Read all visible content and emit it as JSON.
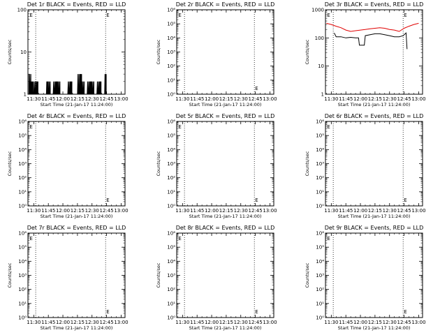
{
  "figure": {
    "background": "#ffffff",
    "foreground": "#000000",
    "lld_color": "#e00000"
  },
  "chart_data": [
    {
      "panel": "det-1",
      "type": "line",
      "title": "Det 1r BLACK = Events, RED = LLD",
      "xlabel": "Start Time (21-Jan-17 11:24:00)",
      "ylabel": "Counts/sec",
      "x_tick_labels": [
        "11:30",
        "11:45",
        "12:00",
        "12:15",
        "12:30",
        "12:45",
        "13:00"
      ],
      "xlim": [
        "11:24",
        "13:04"
      ],
      "y_scale": "log",
      "ylim": [
        1,
        100
      ],
      "y_tick_labels": [
        "1",
        "10",
        "100"
      ],
      "vlines_dotted": [
        "11:32",
        "12:44"
      ],
      "markers": [
        "E",
        "E"
      ],
      "marker_times": [
        "11:25",
        "12:44"
      ],
      "series": [
        {
          "color": "#000000",
          "style": "noisy",
          "x": [
            "11:25",
            "11:28",
            "11:30",
            "11:33",
            "11:35",
            "11:38",
            "11:40",
            "11:43",
            "11:45",
            "11:48",
            "11:50",
            "11:53",
            "11:55",
            "11:58",
            "12:00",
            "12:03",
            "12:05",
            "12:08",
            "12:10",
            "12:13",
            "12:15",
            "12:18",
            "12:20",
            "12:23",
            "12:25",
            "12:28",
            "12:30",
            "12:33",
            "12:35",
            "12:38",
            "12:40",
            "12:43",
            "12:45"
          ],
          "y": [
            3,
            2,
            1,
            2,
            1,
            1,
            1,
            1,
            2,
            1,
            1,
            2,
            2,
            1,
            1,
            1,
            1,
            2,
            1,
            1,
            1,
            3,
            2,
            1,
            1,
            2,
            2,
            1,
            1,
            2,
            1,
            1,
            3
          ]
        }
      ]
    },
    {
      "panel": "det-2",
      "type": "line",
      "title": "Det 2r BLACK = Events, RED = LLD",
      "xlabel": "Start Time (21-Jan-17 11:24:00)",
      "ylabel": "Counts/sec",
      "x_tick_labels": [
        "11:30",
        "11:45",
        "12:00",
        "12:15",
        "12:30",
        "12:45",
        "13:00"
      ],
      "xlim": [
        "11:24",
        "13:04"
      ],
      "y_scale": "log",
      "ylim": [
        1,
        1000000
      ],
      "y_tick_labels": [
        "10⁰",
        "10¹",
        "10²",
        "10³",
        "10⁴",
        "10⁵",
        "10⁶"
      ],
      "vlines_dotted": [
        "11:32",
        "12:44"
      ],
      "markers": [
        "E",
        "E"
      ],
      "marker_times": [
        "11:25",
        "12:44"
      ],
      "series": []
    },
    {
      "panel": "det-3",
      "type": "line",
      "title": "Det 3r BLACK = Events, RED = LLD",
      "xlabel": "Start Time (21-Jan-17 11:24:00)",
      "ylabel": "Counts/sec",
      "x_tick_labels": [
        "11:30",
        "11:45",
        "12:00",
        "12:15",
        "12:30",
        "12:45",
        "13:00"
      ],
      "xlim": [
        "11:24",
        "13:04"
      ],
      "y_scale": "log",
      "ylim": [
        1,
        1000
      ],
      "y_tick_labels": [
        "1",
        "10",
        "100",
        "1000"
      ],
      "vlines_dotted": [
        "11:32",
        "12:44"
      ],
      "markers": [
        "E",
        "E"
      ],
      "marker_times": [
        "11:25",
        "12:44"
      ],
      "series": [
        {
          "color": "#e00000",
          "style": "line",
          "x": [
            "11:25",
            "11:30",
            "11:35",
            "11:40",
            "11:45",
            "11:50",
            "11:55",
            "12:00",
            "12:05",
            "12:10",
            "12:15",
            "12:20",
            "12:25",
            "12:30",
            "12:35",
            "12:40",
            "12:45",
            "12:50",
            "12:55",
            "13:00"
          ],
          "y": [
            330,
            300,
            260,
            230,
            190,
            170,
            180,
            190,
            200,
            210,
            220,
            230,
            220,
            200,
            190,
            170,
            220,
            260,
            300,
            330
          ]
        },
        {
          "color": "#000000",
          "style": "line",
          "x": [
            "11:33",
            "11:35",
            "11:40",
            "11:45",
            "11:50",
            "11:55",
            "11:58",
            "11:59",
            "12:04",
            "12:05",
            "12:10",
            "12:15",
            "12:20",
            "12:25",
            "12:30",
            "12:35",
            "12:40",
            "12:44",
            "12:47",
            "12:48"
          ],
          "y": [
            150,
            110,
            110,
            100,
            105,
            100,
            100,
            55,
            55,
            120,
            130,
            140,
            140,
            130,
            120,
            110,
            110,
            120,
            150,
            40
          ]
        }
      ]
    },
    {
      "panel": "det-4",
      "type": "line",
      "title": "Det 4r BLACK = Events, RED = LLD",
      "xlabel": "Start Time (21-Jan-17 11:24:00)",
      "ylabel": "Counts/sec",
      "x_tick_labels": [
        "11:30",
        "11:45",
        "12:00",
        "12:15",
        "12:30",
        "12:45",
        "13:00"
      ],
      "xlim": [
        "11:24",
        "13:04"
      ],
      "y_scale": "log",
      "ylim": [
        1,
        1000000
      ],
      "y_tick_labels": [
        "10⁰",
        "10¹",
        "10²",
        "10³",
        "10⁴",
        "10⁵",
        "10⁶"
      ],
      "vlines_dotted": [
        "11:32",
        "12:44"
      ],
      "markers": [
        "E",
        "E"
      ],
      "marker_times": [
        "11:25",
        "12:44"
      ],
      "series": []
    },
    {
      "panel": "det-5",
      "type": "line",
      "title": "Det 5r BLACK = Events, RED = LLD",
      "xlabel": "Start Time (21-Jan-17 11:24:00)",
      "ylabel": "Counts/sec",
      "x_tick_labels": [
        "11:30",
        "11:45",
        "12:00",
        "12:15",
        "12:30",
        "12:45",
        "13:00"
      ],
      "xlim": [
        "11:24",
        "13:04"
      ],
      "y_scale": "log",
      "ylim": [
        1,
        1000000
      ],
      "y_tick_labels": [
        "10⁰",
        "10¹",
        "10²",
        "10³",
        "10⁴",
        "10⁵",
        "10⁶"
      ],
      "vlines_dotted": [
        "11:32",
        "12:44"
      ],
      "markers": [
        "E",
        "E"
      ],
      "marker_times": [
        "11:25",
        "12:44"
      ],
      "series": []
    },
    {
      "panel": "det-6",
      "type": "line",
      "title": "Det 6r BLACK = Events, RED = LLD",
      "xlabel": "Start Time (21-Jan-17 11:24:00)",
      "ylabel": "Counts/sec",
      "x_tick_labels": [
        "11:30",
        "11:45",
        "12:00",
        "12:15",
        "12:30",
        "12:45",
        "13:00"
      ],
      "xlim": [
        "11:24",
        "13:04"
      ],
      "y_scale": "log",
      "ylim": [
        1,
        1000000
      ],
      "y_tick_labels": [
        "10⁰",
        "10¹",
        "10²",
        "10³",
        "10⁴",
        "10⁵",
        "10⁶"
      ],
      "vlines_dotted": [
        "11:32",
        "12:44"
      ],
      "markers": [
        "E",
        "E"
      ],
      "marker_times": [
        "11:25",
        "12:44"
      ],
      "series": []
    },
    {
      "panel": "det-7",
      "type": "line",
      "title": "Det 7r BLACK = Events, RED = LLD",
      "xlabel": "Start Time (21-Jan-17 11:24:00)",
      "ylabel": "Counts/sec",
      "x_tick_labels": [
        "11:30",
        "11:45",
        "12:00",
        "12:15",
        "12:30",
        "12:45",
        "13:00"
      ],
      "xlim": [
        "11:24",
        "13:04"
      ],
      "y_scale": "log",
      "ylim": [
        1,
        1000000
      ],
      "y_tick_labels": [
        "10⁰",
        "10¹",
        "10²",
        "10³",
        "10⁴",
        "10⁵",
        "10⁶"
      ],
      "vlines_dotted": [
        "11:32",
        "12:44"
      ],
      "markers": [
        "E",
        "E"
      ],
      "marker_times": [
        "11:25",
        "12:44"
      ],
      "series": []
    },
    {
      "panel": "det-8",
      "type": "line",
      "title": "Det 8r BLACK = Events, RED = LLD",
      "xlabel": "Start Time (21-Jan-17 11:24:00)",
      "ylabel": "Counts/sec",
      "x_tick_labels": [
        "11:30",
        "11:45",
        "12:00",
        "12:15",
        "12:30",
        "12:45",
        "13:00"
      ],
      "xlim": [
        "11:24",
        "13:04"
      ],
      "y_scale": "log",
      "ylim": [
        1,
        1000000
      ],
      "y_tick_labels": [
        "10⁰",
        "10¹",
        "10²",
        "10³",
        "10⁴",
        "10⁵",
        "10⁶"
      ],
      "vlines_dotted": [
        "11:32",
        "12:44"
      ],
      "markers": [
        "E",
        "E"
      ],
      "marker_times": [
        "11:25",
        "12:44"
      ],
      "series": []
    },
    {
      "panel": "det-9",
      "type": "line",
      "title": "Det 9r BLACK = Events, RED = LLD",
      "xlabel": "Start Time (21-Jan-17 11:24:00)",
      "ylabel": "Counts/sec",
      "x_tick_labels": [
        "11:30",
        "11:45",
        "12:00",
        "12:15",
        "12:30",
        "12:45",
        "13:00"
      ],
      "xlim": [
        "11:24",
        "13:04"
      ],
      "y_scale": "log",
      "ylim": [
        1,
        1000000
      ],
      "y_tick_labels": [
        "10⁰",
        "10¹",
        "10²",
        "10³",
        "10⁴",
        "10⁵",
        "10⁶"
      ],
      "vlines_dotted": [
        "11:32",
        "12:44"
      ],
      "markers": [
        "E",
        "E"
      ],
      "marker_times": [
        "11:25",
        "12:44"
      ],
      "series": []
    }
  ]
}
